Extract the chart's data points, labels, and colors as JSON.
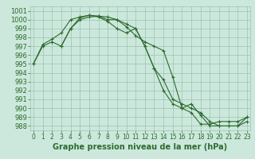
{
  "line1_x": [
    0,
    1,
    2,
    3,
    4,
    5,
    6,
    7,
    8,
    9,
    10,
    11,
    12,
    13,
    14,
    15,
    16,
    17,
    18,
    19,
    20,
    21,
    22,
    23
  ],
  "line1_y": [
    995.0,
    997.0,
    997.5,
    997.0,
    999.0,
    1000.2,
    1000.5,
    1000.3,
    999.8,
    999.0,
    998.5,
    999.0,
    997.0,
    994.5,
    992.0,
    990.5,
    990.0,
    989.5,
    988.2,
    988.2,
    988.5,
    988.5,
    988.5,
    989.0
  ],
  "line2_x": [
    0,
    1,
    2,
    3,
    4,
    5,
    6,
    7,
    8,
    9,
    10,
    11,
    12,
    13,
    14,
    15,
    16,
    17,
    18,
    19,
    20,
    21,
    22,
    23
  ],
  "line2_y": [
    995.0,
    997.2,
    997.8,
    998.5,
    1000.0,
    1000.3,
    1000.5,
    1000.4,
    1000.0,
    1000.0,
    999.2,
    998.2,
    997.5,
    997.0,
    996.5,
    993.5,
    990.0,
    990.5,
    989.2,
    988.0,
    988.0,
    988.0,
    988.0,
    989.0
  ],
  "line3_x": [
    3,
    4,
    5,
    6,
    7,
    8,
    9,
    10,
    11,
    12,
    13,
    14,
    15,
    16,
    17,
    18,
    19,
    20,
    21,
    22,
    23
  ],
  "line3_y": [
    997.0,
    999.0,
    1000.0,
    1000.3,
    1000.4,
    1000.3,
    1000.0,
    999.5,
    999.0,
    997.0,
    994.5,
    993.2,
    991.0,
    990.5,
    990.0,
    989.5,
    988.5,
    988.0,
    988.0,
    988.0,
    988.5
  ],
  "color": "#2d6a2d",
  "bg_color": "#cce8dc",
  "grid_color": "#99c4b0",
  "ylim": [
    987.5,
    1001.5
  ],
  "xlim": [
    -0.3,
    23.3
  ],
  "yticks": [
    988,
    989,
    990,
    991,
    992,
    993,
    994,
    995,
    996,
    997,
    998,
    999,
    1000,
    1001
  ],
  "xticks": [
    0,
    1,
    2,
    3,
    4,
    5,
    6,
    7,
    8,
    9,
    10,
    11,
    12,
    13,
    14,
    15,
    16,
    17,
    18,
    19,
    20,
    21,
    22,
    23
  ],
  "xlabel": "Graphe pression niveau de la mer (hPa)",
  "xlabel_fontsize": 7.0,
  "ytick_fontsize": 6.0,
  "xtick_fontsize": 5.5,
  "marker": "+",
  "marker_size": 3,
  "linewidth": 0.8
}
